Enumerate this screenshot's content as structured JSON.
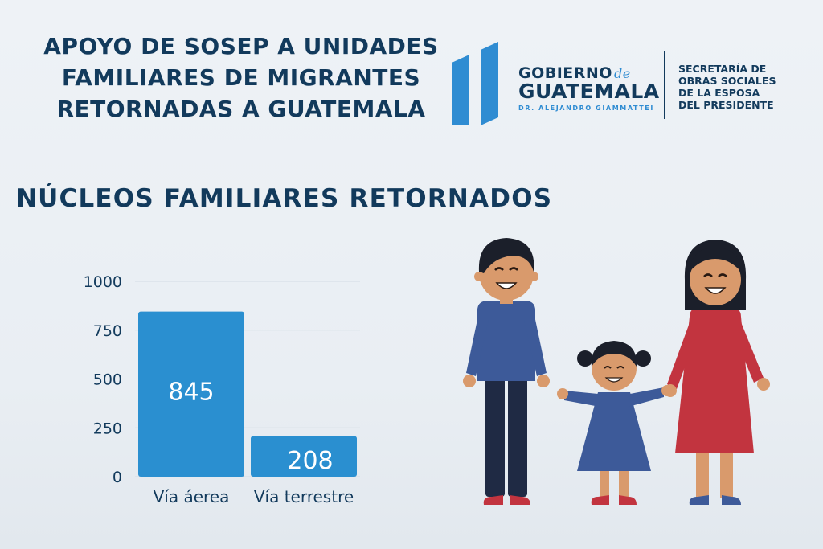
{
  "header": {
    "title_lines": [
      "APOYO DE SOSEP A UNIDADES",
      "FAMILIARES DE MIGRANTES",
      "RETORNADAS A GUATEMALA"
    ]
  },
  "logo": {
    "gobierno": "GOBIERNO",
    "de": "de",
    "guatemala": "GUATEMALA",
    "president": "DR. ALEJANDRO GIAMMATTEI",
    "sosep_lines": [
      "SECRETARÍA DE",
      "OBRAS SOCIALES",
      "DE LA ESPOSA",
      "DEL PRESIDENTE"
    ]
  },
  "colors": {
    "navy": "#123a5c",
    "bar": "#2a8fd0",
    "logo_blue": "#2f8cd2",
    "boy_shirt": "#3d5a99",
    "girl_dress": "#3d5a99",
    "woman_dress": "#c2343f",
    "skin": "#d99a6c"
  },
  "illustration": {
    "description_icons": [
      "boy-figure",
      "girl-figure",
      "woman-figure"
    ]
  },
  "chart_data": {
    "type": "bar",
    "title": "NÚCLEOS FAMILIARES RETORNADOS",
    "categories": [
      "Vía áerea",
      "Vía terrestre"
    ],
    "values": [
      845,
      208
    ],
    "data_labels": [
      "845",
      "208"
    ],
    "ylim": [
      0,
      1000
    ],
    "yticks": [
      0,
      250,
      500,
      750,
      1000
    ],
    "ytick_labels": [
      "0",
      "250",
      "500",
      "750",
      "1000"
    ],
    "grid": true,
    "legend": "none"
  }
}
